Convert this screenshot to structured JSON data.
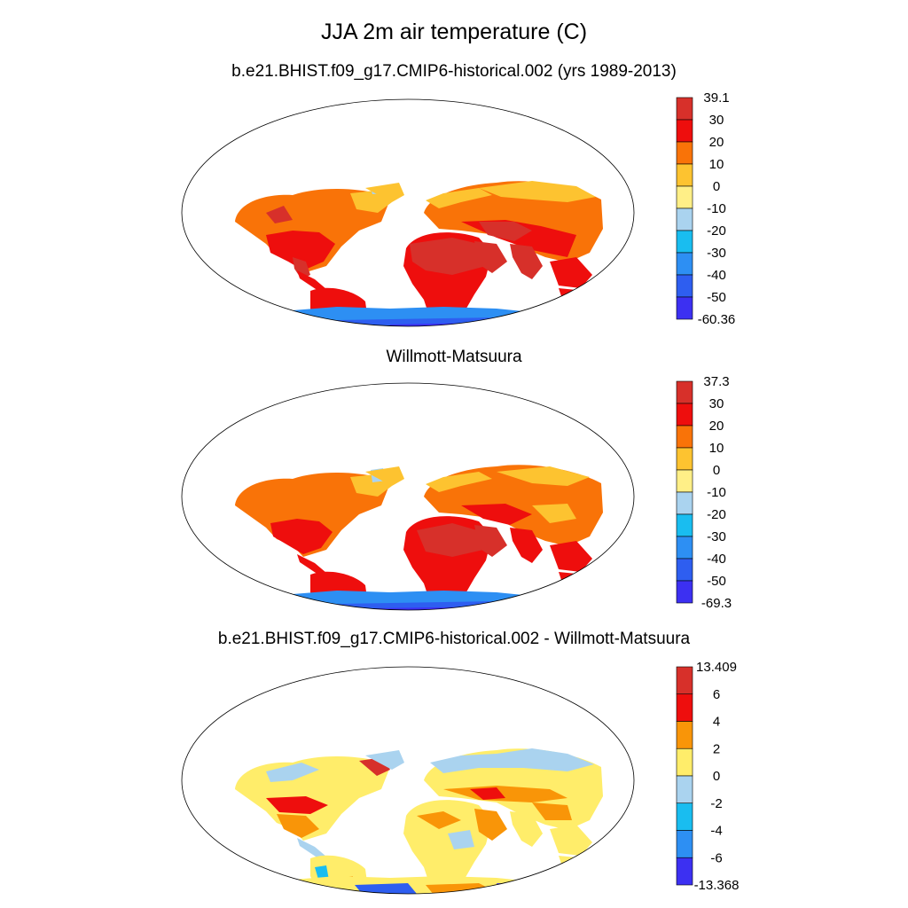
{
  "figure": {
    "title": "JJA 2m air temperature (C)"
  },
  "panels": [
    {
      "id": "model",
      "title": "b.e21.BHIST.f09_g17.CMIP6-historical.002 (yrs 1989-2013)",
      "colorbar": {
        "labels": [
          "39.1",
          "30",
          "20",
          "10",
          "0",
          "-10",
          "-20",
          "-30",
          "-40",
          "-50",
          "-60.36"
        ],
        "colors": [
          "#d7302a",
          "#ee0e0d",
          "#f97308",
          "#fdc330",
          "#ffef87",
          "#aad3ef",
          "#19bdf0",
          "#2d8ff3",
          "#2e5ef0",
          "#3c30f2"
        ],
        "max": 39.1,
        "min": -60.36
      }
    },
    {
      "id": "obs",
      "title": "Willmott-Matsuura",
      "colorbar": {
        "labels": [
          "37.3",
          "30",
          "20",
          "10",
          "0",
          "-10",
          "-20",
          "-30",
          "-40",
          "-50",
          "-69.3"
        ],
        "colors": [
          "#d7302a",
          "#ee0e0d",
          "#f97308",
          "#fdc330",
          "#ffef87",
          "#aad3ef",
          "#19bdf0",
          "#2d8ff3",
          "#2e5ef0",
          "#3c30f2"
        ],
        "max": 37.3,
        "min": -69.3
      }
    },
    {
      "id": "diff",
      "title": "b.e21.BHIST.f09_g17.CMIP6-historical.002 - Willmott-Matsuura",
      "colorbar": {
        "labels": [
          "13.409",
          "6",
          "4",
          "2",
          "0",
          "-2",
          "-4",
          "-6",
          "-13.368"
        ],
        "colors": [
          "#d7302a",
          "#ee0e0d",
          "#f99508",
          "#ffed6a",
          "#aad3ef",
          "#19bdf0",
          "#2d8ff3",
          "#3c30f2"
        ],
        "max": 13.409,
        "min": -13.368
      }
    }
  ],
  "colors": {
    "hot": "#d7302a",
    "warm": "#ee0e0d",
    "mild": "#f97308",
    "cool": "#fdc330",
    "cold": "#2d8ff3",
    "polar": "#3c30f2",
    "coast": "#000000",
    "background": "#ffffff"
  }
}
